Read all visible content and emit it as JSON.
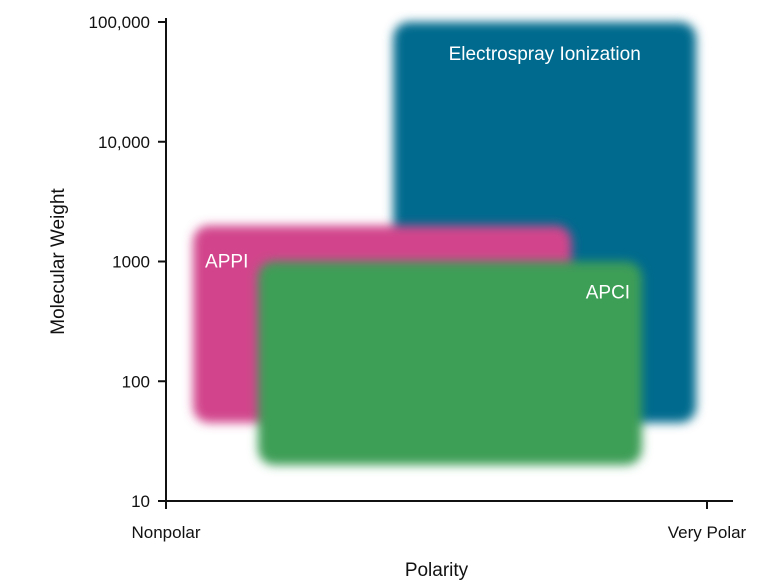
{
  "chart_data": {
    "type": "area",
    "title": "",
    "xlabel": "Polarity",
    "ylabel": "Molecular Weight",
    "x_scale": "categorical-continuum",
    "x_categories": [
      "Nonpolar",
      "Very Polar"
    ],
    "x_range": [
      0,
      1
    ],
    "y_scale": "log",
    "ylim": [
      10,
      100000
    ],
    "y_ticks": [
      {
        "value": 10,
        "label": "10"
      },
      {
        "value": 100,
        "label": "100"
      },
      {
        "value": 1000,
        "label": "1000"
      },
      {
        "value": 10000,
        "label": "10,000"
      },
      {
        "value": 100000,
        "label": "100,000"
      }
    ],
    "grid": false,
    "legend": "none",
    "series": [
      {
        "name": "Electrospray Ionization",
        "color": "#006a8e",
        "polarity_range": [
          0.42,
          0.98
        ],
        "mw_range": [
          45,
          100000
        ]
      },
      {
        "name": "APPI",
        "color": "#d2448c",
        "polarity_range": [
          0.05,
          0.75
        ],
        "mw_range": [
          45,
          2000
        ]
      },
      {
        "name": "APCI",
        "color": "#3e9e57",
        "polarity_range": [
          0.17,
          0.88
        ],
        "mw_range": [
          20,
          1000
        ]
      }
    ]
  }
}
